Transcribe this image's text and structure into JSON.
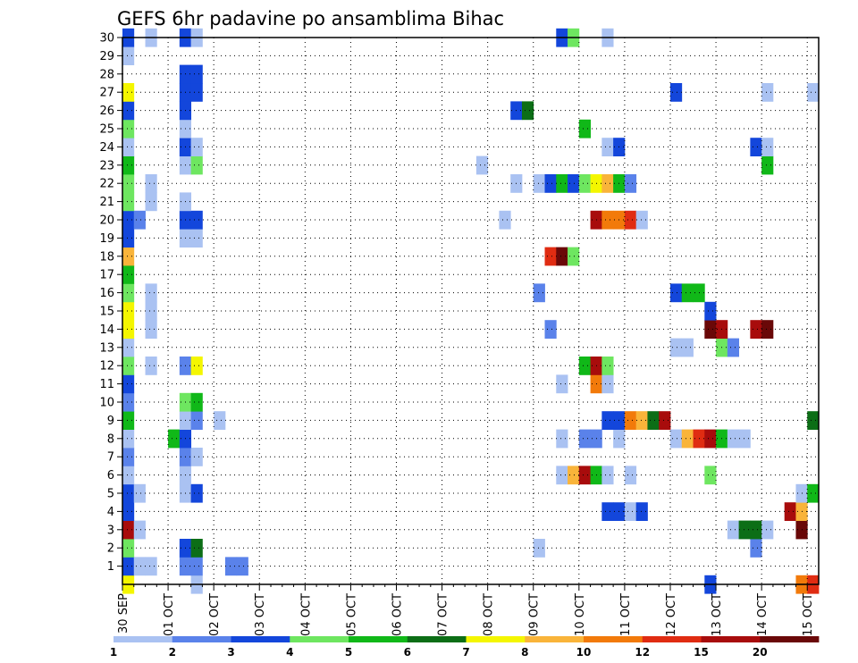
{
  "chart_data": {
    "type": "heatmap",
    "title": "GEFS 6hr padavine po ansamblima Bihac",
    "xlabel": "",
    "ylabel": "",
    "x_unit": "6-hour step from 30 SEP 00z",
    "x_range": [
      0,
      61
    ],
    "y_range": [
      0,
      30
    ],
    "y_ticks": [
      1,
      2,
      3,
      4,
      5,
      6,
      7,
      8,
      9,
      10,
      11,
      12,
      13,
      14,
      15,
      16,
      17,
      18,
      19,
      20,
      21,
      22,
      23,
      24,
      25,
      26,
      27,
      28,
      29,
      30
    ],
    "x_tick_labels": [
      "30 SEP",
      "01 OCT",
      "02 OCT",
      "03 OCT",
      "04 OCT",
      "05 OCT",
      "06 OCT",
      "07 OCT",
      "08 OCT",
      "09 OCT",
      "10 OCT",
      "11 OCT",
      "12 OCT",
      "13 OCT",
      "14 OCT",
      "15 OCT"
    ],
    "grid": true,
    "legend_position": "bottom",
    "colorbar": {
      "labels": [
        "1",
        "2",
        "3",
        "4",
        "5",
        "6",
        "7",
        "8",
        "10",
        "12",
        "15",
        "20"
      ],
      "colors": [
        "#aac2f2",
        "#5a82ea",
        "#1346db",
        "#6ee660",
        "#10b818",
        "#0c6e16",
        "#f4f600",
        "#f9b43a",
        "#f27a0a",
        "#e02c12",
        "#a80c0c",
        "#6a0808"
      ]
    },
    "series": [
      {
        "name": "0",
        "cells": [
          [
            0,
            7
          ],
          [
            6,
            1
          ],
          [
            51,
            3
          ],
          [
            59,
            9
          ],
          [
            60,
            10
          ]
        ]
      },
      {
        "name": "1",
        "cells": [
          [
            0,
            3
          ],
          [
            1,
            1
          ],
          [
            2,
            1
          ],
          [
            5,
            2
          ],
          [
            6,
            2
          ],
          [
            9,
            2
          ],
          [
            10,
            2
          ]
        ]
      },
      {
        "name": "2",
        "cells": [
          [
            0,
            4
          ],
          [
            5,
            3
          ],
          [
            6,
            6
          ],
          [
            36,
            1
          ],
          [
            55,
            2
          ]
        ]
      },
      {
        "name": "3",
        "cells": [
          [
            0,
            11
          ],
          [
            1,
            1
          ],
          [
            53,
            1
          ],
          [
            54,
            6
          ],
          [
            55,
            6
          ],
          [
            56,
            1
          ],
          [
            59,
            12
          ]
        ]
      },
      {
        "name": "4",
        "cells": [
          [
            0,
            3
          ],
          [
            42,
            3
          ],
          [
            43,
            3
          ],
          [
            44,
            1
          ],
          [
            45,
            3
          ],
          [
            58,
            11
          ],
          [
            59,
            8
          ]
        ]
      },
      {
        "name": "5",
        "cells": [
          [
            0,
            3
          ],
          [
            1,
            1
          ],
          [
            5,
            1
          ],
          [
            6,
            3
          ],
          [
            59,
            1
          ],
          [
            60,
            5
          ]
        ]
      },
      {
        "name": "6",
        "cells": [
          [
            0,
            1
          ],
          [
            5,
            1
          ],
          [
            38,
            1
          ],
          [
            39,
            8
          ],
          [
            40,
            11
          ],
          [
            41,
            5
          ],
          [
            42,
            1
          ],
          [
            44,
            1
          ],
          [
            51,
            4
          ]
        ]
      },
      {
        "name": "7",
        "cells": [
          [
            0,
            2
          ],
          [
            5,
            2
          ],
          [
            6,
            1
          ]
        ]
      },
      {
        "name": "8",
        "cells": [
          [
            0,
            1
          ],
          [
            4,
            5
          ],
          [
            5,
            3
          ],
          [
            38,
            1
          ],
          [
            40,
            2
          ],
          [
            41,
            2
          ],
          [
            43,
            1
          ],
          [
            48,
            1
          ],
          [
            49,
            8
          ],
          [
            50,
            10
          ],
          [
            51,
            11
          ],
          [
            52,
            5
          ],
          [
            53,
            1
          ],
          [
            54,
            1
          ]
        ]
      },
      {
        "name": "9",
        "cells": [
          [
            0,
            5
          ],
          [
            5,
            1
          ],
          [
            6,
            2
          ],
          [
            8,
            1
          ],
          [
            42,
            3
          ],
          [
            43,
            3
          ],
          [
            44,
            9
          ],
          [
            45,
            8
          ],
          [
            46,
            6
          ],
          [
            47,
            11
          ],
          [
            60,
            6
          ]
        ]
      },
      {
        "name": "10",
        "cells": [
          [
            0,
            2
          ],
          [
            5,
            4
          ],
          [
            6,
            5
          ]
        ]
      },
      {
        "name": "11",
        "cells": [
          [
            0,
            3
          ],
          [
            38,
            1
          ],
          [
            41,
            9
          ],
          [
            42,
            1
          ]
        ]
      },
      {
        "name": "12",
        "cells": [
          [
            0,
            4
          ],
          [
            2,
            1
          ],
          [
            5,
            2
          ],
          [
            6,
            7
          ],
          [
            40,
            5
          ],
          [
            41,
            11
          ],
          [
            42,
            4
          ]
        ]
      },
      {
        "name": "13",
        "cells": [
          [
            0,
            1
          ],
          [
            48,
            1
          ],
          [
            49,
            1
          ],
          [
            52,
            4
          ],
          [
            53,
            2
          ]
        ]
      },
      {
        "name": "14",
        "cells": [
          [
            0,
            7
          ],
          [
            2,
            1
          ],
          [
            37,
            2
          ],
          [
            51,
            12
          ],
          [
            52,
            11
          ],
          [
            55,
            11
          ],
          [
            56,
            12
          ]
        ]
      },
      {
        "name": "15",
        "cells": [
          [
            0,
            7
          ],
          [
            2,
            1
          ],
          [
            51,
            3
          ]
        ]
      },
      {
        "name": "16",
        "cells": [
          [
            0,
            4
          ],
          [
            2,
            1
          ],
          [
            36,
            2
          ],
          [
            48,
            3
          ],
          [
            49,
            5
          ],
          [
            50,
            5
          ]
        ]
      },
      {
        "name": "17",
        "cells": [
          [
            0,
            5
          ]
        ]
      },
      {
        "name": "18",
        "cells": [
          [
            0,
            8
          ],
          [
            37,
            10
          ],
          [
            38,
            12
          ],
          [
            39,
            4
          ]
        ]
      },
      {
        "name": "19",
        "cells": [
          [
            0,
            3
          ],
          [
            5,
            1
          ],
          [
            6,
            1
          ]
        ]
      },
      {
        "name": "20",
        "cells": [
          [
            0,
            3
          ],
          [
            1,
            2
          ],
          [
            5,
            3
          ],
          [
            6,
            3
          ],
          [
            33,
            1
          ],
          [
            41,
            11
          ],
          [
            42,
            9
          ],
          [
            43,
            9
          ],
          [
            44,
            10
          ],
          [
            45,
            1
          ]
        ]
      },
      {
        "name": "21",
        "cells": [
          [
            0,
            4
          ],
          [
            2,
            1
          ],
          [
            5,
            1
          ]
        ]
      },
      {
        "name": "22",
        "cells": [
          [
            0,
            4
          ],
          [
            2,
            1
          ],
          [
            34,
            1
          ],
          [
            36,
            1
          ],
          [
            37,
            3
          ],
          [
            38,
            5
          ],
          [
            39,
            3
          ],
          [
            40,
            4
          ],
          [
            41,
            7
          ],
          [
            42,
            8
          ],
          [
            43,
            5
          ],
          [
            44,
            2
          ]
        ]
      },
      {
        "name": "23",
        "cells": [
          [
            0,
            5
          ],
          [
            5,
            1
          ],
          [
            6,
            4
          ],
          [
            31,
            1
          ],
          [
            56,
            5
          ]
        ]
      },
      {
        "name": "24",
        "cells": [
          [
            0,
            1
          ],
          [
            5,
            3
          ],
          [
            6,
            1
          ],
          [
            42,
            1
          ],
          [
            43,
            3
          ],
          [
            55,
            3
          ],
          [
            56,
            1
          ]
        ]
      },
      {
        "name": "25",
        "cells": [
          [
            0,
            4
          ],
          [
            5,
            1
          ],
          [
            40,
            5
          ]
        ]
      },
      {
        "name": "26",
        "cells": [
          [
            0,
            3
          ],
          [
            5,
            3
          ],
          [
            34,
            3
          ],
          [
            35,
            6
          ]
        ]
      },
      {
        "name": "27",
        "cells": [
          [
            0,
            7
          ],
          [
            5,
            3
          ],
          [
            6,
            3
          ],
          [
            48,
            3
          ],
          [
            56,
            1
          ],
          [
            60,
            1
          ]
        ]
      },
      {
        "name": "28",
        "cells": [
          [
            5,
            3
          ],
          [
            6,
            3
          ]
        ]
      },
      {
        "name": "29",
        "cells": [
          [
            0,
            1
          ]
        ]
      },
      {
        "name": "30",
        "cells": [
          [
            0,
            3
          ],
          [
            2,
            1
          ],
          [
            5,
            3
          ],
          [
            6,
            1
          ],
          [
            38,
            3
          ],
          [
            39,
            4
          ],
          [
            42,
            1
          ]
        ]
      }
    ]
  }
}
